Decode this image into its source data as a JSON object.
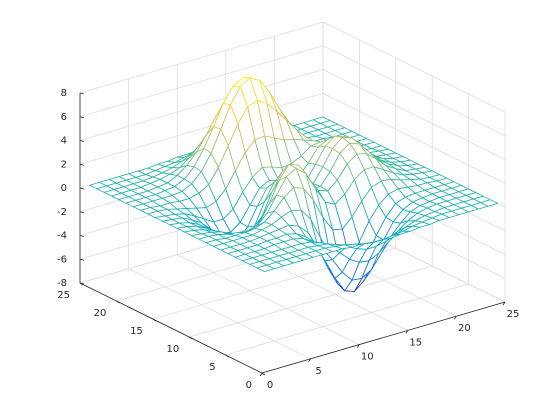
{
  "chart_data": {
    "type": "mesh",
    "x": [
      1,
      2,
      3,
      4,
      5,
      6,
      7,
      8,
      9,
      10,
      11,
      12,
      13,
      14,
      15,
      16,
      17,
      18,
      19,
      20,
      21,
      22,
      23,
      24,
      25
    ],
    "y": [
      1,
      2,
      3,
      4,
      5,
      6,
      7,
      8,
      9,
      10,
      11,
      12,
      13,
      14,
      15,
      16,
      17,
      18,
      19,
      20,
      21,
      22,
      23,
      24,
      25
    ],
    "z": [
      [
        0,
        0,
        0,
        0,
        0,
        0,
        0,
        0,
        0,
        -0.1,
        -0.1,
        -0.2,
        -0.2,
        -0.3,
        -0.2,
        -0.2,
        -0.1,
        -0.1,
        0,
        0,
        0,
        0,
        0,
        0,
        0
      ],
      [
        0,
        0,
        0,
        0,
        0,
        0,
        0,
        0,
        -0.1,
        -0.2,
        -0.4,
        -0.6,
        -0.7,
        -0.7,
        -0.6,
        -0.5,
        -0.3,
        -0.2,
        -0.1,
        0,
        0,
        0,
        0,
        0,
        0
      ],
      [
        0,
        0,
        0,
        0,
        0,
        0,
        0,
        -0.1,
        -0.2,
        -0.5,
        -0.9,
        -1.3,
        -1.6,
        -1.6,
        -1.4,
        -1.1,
        -0.7,
        -0.4,
        -0.2,
        -0.1,
        0,
        0,
        0,
        0,
        0
      ],
      [
        0,
        0,
        0,
        0,
        0,
        0,
        0,
        -0.1,
        -0.4,
        -1.0,
        -1.7,
        -2.5,
        -3.0,
        -3.1,
        -2.7,
        -2.0,
        -1.3,
        -0.7,
        -0.3,
        -0.1,
        0,
        0,
        0,
        0,
        0
      ],
      [
        0,
        0,
        0,
        0,
        0.1,
        0.1,
        0.1,
        -0.1,
        -0.6,
        -1.5,
        -2.6,
        -3.9,
        -4.8,
        -4.9,
        -4.4,
        -3.3,
        -2.1,
        -1.2,
        -0.5,
        -0.2,
        -0.1,
        0,
        0,
        0,
        0
      ],
      [
        0,
        0,
        0,
        0,
        0.1,
        0.1,
        0.2,
        0,
        -0.5,
        -1.5,
        -3.0,
        -4.7,
        -6.0,
        -6.3,
        -5.6,
        -4.2,
        -2.7,
        -1.4,
        -0.6,
        -0.2,
        -0.1,
        0,
        0,
        0,
        0
      ],
      [
        0,
        0,
        0,
        0,
        0.1,
        0.2,
        0.3,
        0.4,
        0.1,
        -0.7,
        -2.2,
        -4.1,
        -5.7,
        -6.3,
        -5.8,
        -4.3,
        -2.6,
        -1.3,
        -0.4,
        -0.1,
        0,
        0,
        0,
        0,
        0
      ],
      [
        0,
        0,
        0,
        0,
        0,
        0.2,
        0.4,
        0.8,
        1.1,
        0.9,
        -0.1,
        -1.9,
        -3.6,
        -4.6,
        -4.4,
        -3.2,
        -1.7,
        -0.6,
        0.1,
        0.3,
        0.2,
        0.1,
        0.1,
        0,
        0
      ],
      [
        0,
        0,
        -0.1,
        -0.1,
        -0.1,
        0,
        0.3,
        1.0,
        1.9,
        2.5,
        2.2,
        1.0,
        -0.7,
        -2.0,
        -2.2,
        -1.4,
        -0.3,
        0.6,
        0.9,
        0.8,
        0.5,
        0.3,
        0.1,
        0,
        0
      ],
      [
        0,
        0,
        -0.1,
        -0.3,
        -0.4,
        -0.5,
        -0.3,
        0.5,
        1.8,
        3.1,
        3.6,
        2.9,
        1.4,
        0,
        -0.4,
        0.2,
        1.2,
        1.8,
        1.8,
        1.3,
        0.8,
        0.4,
        0.2,
        0.1,
        0
      ],
      [
        0,
        -0.1,
        -0.2,
        -0.4,
        -0.8,
        -1.2,
        -1.2,
        -0.6,
        0.8,
        2.5,
        3.6,
        3.3,
        2.0,
        0.7,
        0.4,
        1.1,
        2.2,
        2.8,
        2.6,
        1.9,
        1.1,
        0.6,
        0.2,
        0.1,
        0
      ],
      [
        0,
        -0.1,
        -0.3,
        -0.6,
        -1.1,
        -1.8,
        -2.2,
        -1.8,
        -0.6,
        1.2,
        2.6,
        2.6,
        1.6,
        0.5,
        0.5,
        1.5,
        2.8,
        3.4,
        3.1,
        2.2,
        1.3,
        0.7,
        0.3,
        0.1,
        0
      ],
      [
        0,
        -0.1,
        -0.3,
        -0.7,
        -1.3,
        -2.1,
        -2.8,
        -2.7,
        -1.7,
        0.1,
        1.5,
        1.8,
        1.0,
        0.2,
        0.4,
        1.6,
        2.9,
        3.6,
        3.3,
        2.4,
        1.4,
        0.7,
        0.3,
        0.1,
        0
      ],
      [
        0,
        -0.1,
        -0.3,
        -0.7,
        -1.3,
        -2.2,
        -2.9,
        -3.0,
        -2.1,
        -0.6,
        0.7,
        1.1,
        0.5,
        0,
        0.3,
        1.5,
        2.8,
        3.4,
        3.1,
        2.2,
        1.3,
        0.7,
        0.3,
        0.1,
        0
      ],
      [
        0,
        -0.1,
        -0.2,
        -0.6,
        -1.1,
        -1.9,
        -2.5,
        -2.6,
        -2.0,
        -0.8,
        0.4,
        0.8,
        0.5,
        0.1,
        0.4,
        1.3,
        2.4,
        2.8,
        2.6,
        1.8,
        1.1,
        0.5,
        0.2,
        0.1,
        0
      ],
      [
        0,
        -0.1,
        -0.2,
        -0.4,
        -0.8,
        -1.3,
        -1.8,
        -1.8,
        -1.2,
        0,
        1.0,
        1.6,
        1.4,
        1.1,
        1.2,
        1.6,
        2.2,
        2.3,
        2.0,
        1.4,
        0.8,
        0.4,
        0.2,
        0.1,
        0
      ],
      [
        0,
        0,
        -0.1,
        -0.3,
        -0.5,
        -0.7,
        -0.9,
        -0.6,
        0.2,
        1.5,
        2.8,
        3.6,
        3.7,
        3.3,
        2.9,
        2.7,
        2.4,
        2.1,
        1.6,
        1.0,
        0.6,
        0.3,
        0.1,
        0,
        0
      ],
      [
        0,
        0,
        -0.1,
        -0.1,
        -0.2,
        -0.2,
        0,
        0.5,
        1.7,
        3.3,
        4.9,
        6.1,
        6.4,
        5.9,
        5.0,
        4.0,
        3.0,
        2.1,
        1.4,
        0.8,
        0.4,
        0.2,
        0.1,
        0,
        0
      ],
      [
        0,
        0,
        0,
        0,
        0,
        0.1,
        0.5,
        1.3,
        2.6,
        4.4,
        6.2,
        7.5,
        8.0,
        7.5,
        6.3,
        4.7,
        3.3,
        2.1,
        1.2,
        0.6,
        0.3,
        0.1,
        0,
        0,
        0
      ],
      [
        0,
        0,
        0,
        0,
        0.1,
        0.2,
        0.6,
        1.4,
        2.7,
        4.3,
        6.0,
        7.2,
        7.7,
        7.2,
        6.0,
        4.4,
        3.0,
        1.8,
        1.0,
        0.5,
        0.2,
        0.1,
        0,
        0,
        0
      ],
      [
        0,
        0,
        0,
        0,
        0.1,
        0.2,
        0.6,
        1.2,
        2.1,
        3.3,
        4.6,
        5.5,
        5.9,
        5.5,
        4.6,
        3.4,
        2.2,
        1.3,
        0.7,
        0.3,
        0.1,
        0.1,
        0,
        0,
        0
      ],
      [
        0,
        0,
        0,
        0,
        0.1,
        0.2,
        0.4,
        0.7,
        1.3,
        2.1,
        2.8,
        3.4,
        3.7,
        3.4,
        2.8,
        2.1,
        1.4,
        0.8,
        0.4,
        0.2,
        0.1,
        0,
        0,
        0,
        0
      ],
      [
        0,
        0,
        0,
        0,
        0,
        0.1,
        0.2,
        0.4,
        0.7,
        1.1,
        1.5,
        1.8,
        1.9,
        1.8,
        1.5,
        1.1,
        0.7,
        0.4,
        0.2,
        0.1,
        0,
        0,
        0,
        0,
        0
      ],
      [
        0,
        0,
        0,
        0,
        0,
        0,
        0.1,
        0.2,
        0.3,
        0.5,
        0.6,
        0.8,
        0.8,
        0.8,
        0.6,
        0.5,
        0.3,
        0.2,
        0.1,
        0,
        0,
        0,
        0,
        0,
        0
      ],
      [
        0,
        0,
        0,
        0,
        0,
        0,
        0,
        0.1,
        0.1,
        0.2,
        0.2,
        0.3,
        0.3,
        0.3,
        0.2,
        0.2,
        0.1,
        0.1,
        0,
        0,
        0,
        0,
        0,
        0,
        0
      ]
    ],
    "xlim": [
      0,
      25
    ],
    "xticks": [
      0,
      5,
      10,
      15,
      20,
      25
    ],
    "ylim": [
      0,
      25
    ],
    "yticks": [
      0,
      5,
      10,
      15,
      20,
      25
    ],
    "zlim": [
      -8,
      8
    ],
    "zticks": [
      -8,
      -6,
      -4,
      -2,
      0,
      2,
      4,
      6,
      8
    ],
    "grid": true,
    "colormap": [
      "#352a87",
      "#0363e1",
      "#1485d4",
      "#06a7c6",
      "#38b99e",
      "#92bf73",
      "#d9ba56",
      "#fcce2e",
      "#f9fb0e"
    ]
  }
}
